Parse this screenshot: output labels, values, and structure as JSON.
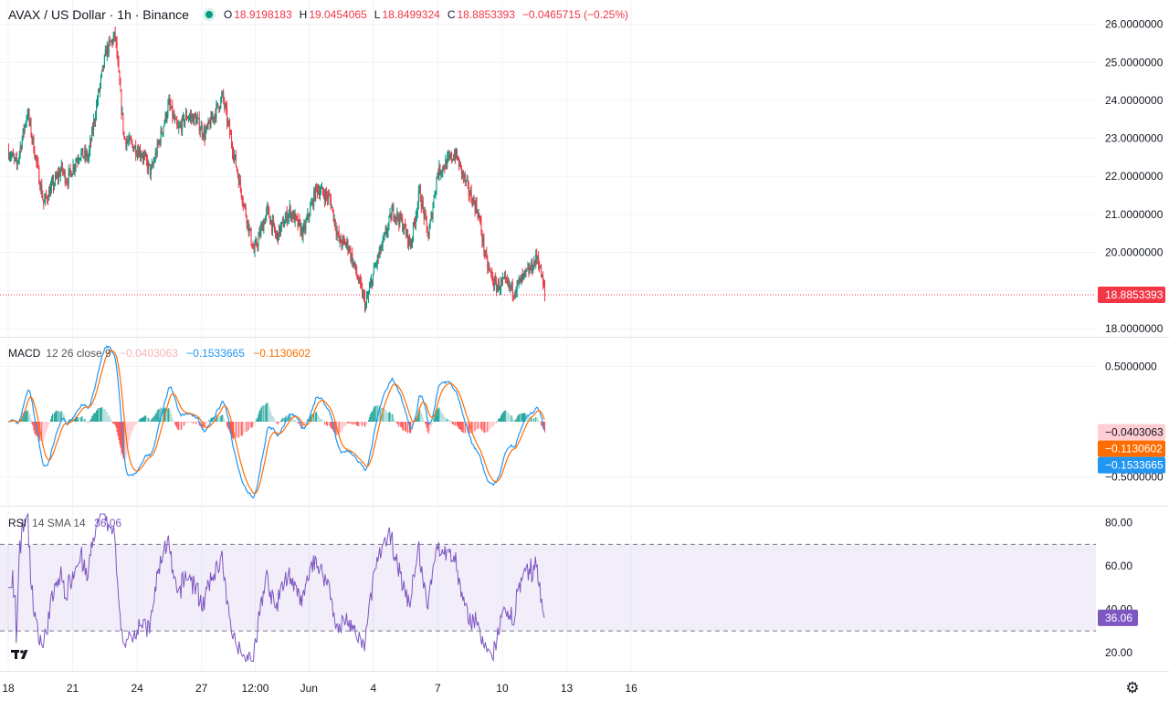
{
  "header": {
    "symbol": "AVAX / US Dollar · 1h · Binance",
    "open_label": "O",
    "open": "18.9198183",
    "high_label": "H",
    "high": "19.0454065",
    "low_label": "L",
    "low": "18.8499324",
    "close_label": "C",
    "close": "18.8853393",
    "change": "−0.0465715 (−0.25%)"
  },
  "colors": {
    "up": "#089981",
    "down": "#f23645",
    "macd": "#2196f3",
    "signal": "#ff6d00",
    "rsi": "#7e57c2",
    "grid": "#f0f3fa",
    "text": "#131722"
  },
  "chart_data": [
    {
      "type": "candlestick",
      "title": "AVAX / US Dollar · 1h · Binance",
      "y_ticks": [
        "26.0000000",
        "25.0000000",
        "24.0000000",
        "23.0000000",
        "22.0000000",
        "21.0000000",
        "20.0000000",
        "18.0000000"
      ],
      "ylim": [
        17.9,
        26.4
      ],
      "last_price": "18.8853393",
      "anchors_hours": [
        0,
        10,
        22,
        40,
        60,
        66,
        80,
        90,
        100,
        110,
        120,
        130,
        150,
        160,
        180,
        190,
        200,
        210,
        220,
        240,
        260,
        275,
        290,
        300,
        315,
        330,
        345,
        350,
        360,
        370,
        380,
        400,
        410,
        420,
        430,
        440,
        450,
        460,
        470,
        480,
        500,
        503,
        515,
        525,
        535,
        545,
        555,
        565,
        575,
        585,
        592,
        600
      ],
      "anchor_prices": [
        22.7,
        22.3,
        23.7,
        21.3,
        22.2,
        21.9,
        22.6,
        22.5,
        24.0,
        25.3,
        25.7,
        23.0,
        22.6,
        22.1,
        23.9,
        23.2,
        23.6,
        23.5,
        23.1,
        24.1,
        21.7,
        20.0,
        21.1,
        20.4,
        21.1,
        20.5,
        21.7,
        21.6,
        21.4,
        20.3,
        20.2,
        18.6,
        19.6,
        20.3,
        21.1,
        20.8,
        20.2,
        21.6,
        20.4,
        22.1,
        22.6,
        22.4,
        21.6,
        21.1,
        19.7,
        19.1,
        19.2,
        19.0,
        19.3,
        19.6,
        19.9,
        18.9
      ]
    },
    {
      "type": "line",
      "title": "MACD",
      "params": "12 26 close 9",
      "values": {
        "histogram": "−0.0403063",
        "macd": "−0.1533665",
        "signal": "−0.1130602"
      },
      "y_ticks": [
        "0.5000000",
        "−0.5000000"
      ],
      "ylim": [
        -0.75,
        0.75
      ]
    },
    {
      "type": "line",
      "title": "RSI",
      "params": "14 SMA 14",
      "value": "36.06",
      "y_ticks": [
        "80.00",
        "60.00",
        "40.00",
        "20.00"
      ],
      "ylim": [
        12,
        87
      ],
      "band": [
        30,
        70
      ]
    }
  ],
  "x_ticks": [
    {
      "label": "18",
      "hour": 0
    },
    {
      "label": "21",
      "hour": 72
    },
    {
      "label": "24",
      "hour": 144
    },
    {
      "label": "27",
      "hour": 216
    },
    {
      "label": "12:00",
      "hour": 276
    },
    {
      "label": "Jun",
      "hour": 336
    },
    {
      "label": "4",
      "hour": 408
    },
    {
      "label": "7",
      "hour": 480
    },
    {
      "label": "10",
      "hour": 552
    },
    {
      "label": "13",
      "hour": 624
    },
    {
      "label": "16",
      "hour": 696
    }
  ]
}
